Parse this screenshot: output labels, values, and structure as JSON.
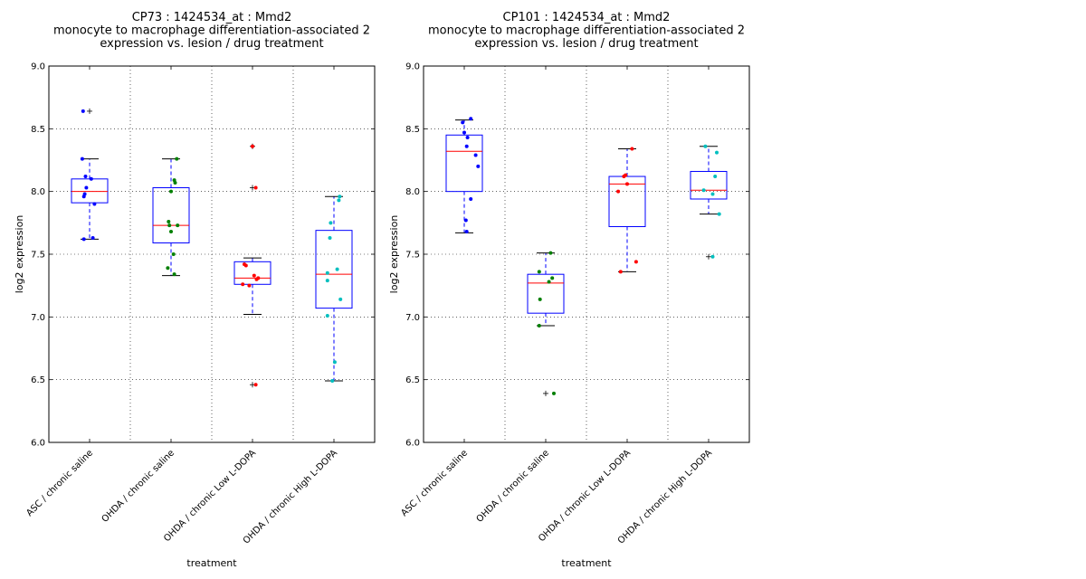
{
  "chart_data": [
    {
      "type": "box",
      "title": [
        "CP73 : 1424534_at : Mmd2",
        "monocyte to macrophage differentiation-associated 2",
        "expression vs. lesion / drug treatment"
      ],
      "xlabel": "treatment",
      "ylabel": "log2 expression",
      "ylim": [
        6.0,
        9.0
      ],
      "yticks": [
        "6.0",
        "6.5",
        "7.0",
        "7.5",
        "8.0",
        "8.5",
        "9.0"
      ],
      "grid": true,
      "categories": [
        "ASC / chronic saline",
        "OHDA / chronic saline",
        "OHDA / chronic Low L-DOPA",
        "OHDA / chronic High L-DOPA"
      ],
      "boxes": [
        {
          "q1": 7.91,
          "median": 8.0,
          "q3": 8.1,
          "whisker_low": 7.62,
          "whisker_high": 8.26,
          "outliers": [
            8.64
          ]
        },
        {
          "q1": 7.59,
          "median": 7.73,
          "q3": 8.03,
          "whisker_low": 7.33,
          "whisker_high": 8.26,
          "outliers": []
        },
        {
          "q1": 7.26,
          "median": 7.31,
          "q3": 7.44,
          "whisker_low": 7.02,
          "whisker_high": 7.47,
          "outliers": [
            8.36,
            8.03,
            6.46
          ]
        },
        {
          "q1": 7.07,
          "median": 7.34,
          "q3": 7.69,
          "whisker_low": 6.49,
          "whisker_high": 7.96,
          "outliers": []
        }
      ],
      "points": [
        {
          "color": "#0000ff",
          "items": [
            [
              -0.08,
              8.64
            ],
            [
              -0.09,
              8.26
            ],
            [
              -0.05,
              8.12
            ],
            [
              -0.04,
              8.03
            ],
            [
              -0.06,
              7.98
            ],
            [
              -0.07,
              7.96
            ],
            [
              0.06,
              7.9
            ],
            [
              0.02,
              8.1
            ],
            [
              0.04,
              7.63
            ],
            [
              -0.07,
              7.62
            ]
          ]
        },
        {
          "color": "#007f00",
          "items": [
            [
              0.07,
              8.26
            ],
            [
              0.04,
              8.09
            ],
            [
              0.05,
              8.07
            ],
            [
              0.0,
              8.0
            ],
            [
              -0.03,
              7.76
            ],
            [
              -0.02,
              7.73
            ],
            [
              0.08,
              7.73
            ],
            [
              0.0,
              7.68
            ],
            [
              0.03,
              7.5
            ],
            [
              -0.04,
              7.39
            ],
            [
              0.04,
              7.34
            ]
          ]
        },
        {
          "color": "#ff0000",
          "items": [
            [
              0.0,
              8.36
            ],
            [
              0.04,
              8.03
            ],
            [
              -0.1,
              7.42
            ],
            [
              -0.08,
              7.41
            ],
            [
              0.02,
              7.33
            ],
            [
              0.05,
              7.3
            ],
            [
              0.07,
              7.31
            ],
            [
              -0.12,
              7.26
            ],
            [
              -0.04,
              7.25
            ],
            [
              0.04,
              6.46
            ]
          ]
        },
        {
          "color": "#00bfbf",
          "items": [
            [
              0.07,
              7.96
            ],
            [
              0.06,
              7.93
            ],
            [
              -0.04,
              7.75
            ],
            [
              -0.05,
              7.63
            ],
            [
              0.04,
              7.38
            ],
            [
              -0.08,
              7.35
            ],
            [
              -0.08,
              7.29
            ],
            [
              0.08,
              7.14
            ],
            [
              -0.08,
              7.01
            ],
            [
              0.01,
              6.64
            ],
            [
              -0.02,
              6.49
            ]
          ]
        }
      ]
    },
    {
      "type": "box",
      "title": [
        "CP101 : 1424534_at : Mmd2",
        "monocyte to macrophage differentiation-associated 2",
        "expression vs. lesion / drug treatment"
      ],
      "xlabel": "treatment",
      "ylabel": "log2 expression",
      "ylim": [
        6.0,
        9.0
      ],
      "yticks": [
        "6.0",
        "6.5",
        "7.0",
        "7.5",
        "8.0",
        "8.5",
        "9.0"
      ],
      "grid": true,
      "categories": [
        "ASC / chronic saline",
        "OHDA / chronic saline",
        "OHDA / chronic Low L-DOPA",
        "OHDA / chronic High L-DOPA"
      ],
      "boxes": [
        {
          "q1": 8.0,
          "median": 8.32,
          "q3": 8.45,
          "whisker_low": 7.67,
          "whisker_high": 8.57,
          "outliers": []
        },
        {
          "q1": 7.03,
          "median": 7.27,
          "q3": 7.34,
          "whisker_low": 6.93,
          "whisker_high": 7.51,
          "outliers": [
            6.39
          ]
        },
        {
          "q1": 7.72,
          "median": 8.06,
          "q3": 8.12,
          "whisker_low": 7.36,
          "whisker_high": 8.34,
          "outliers": []
        },
        {
          "q1": 7.94,
          "median": 8.01,
          "q3": 8.16,
          "whisker_low": 7.82,
          "whisker_high": 8.36,
          "outliers": [
            7.48
          ]
        }
      ],
      "points": [
        {
          "color": "#0000ff",
          "items": [
            [
              0.08,
              8.58
            ],
            [
              -0.02,
              8.55
            ],
            [
              0.0,
              8.47
            ],
            [
              0.04,
              8.43
            ],
            [
              0.03,
              8.36
            ],
            [
              0.14,
              8.29
            ],
            [
              0.17,
              8.2
            ],
            [
              0.08,
              7.94
            ],
            [
              0.02,
              7.77
            ],
            [
              0.03,
              7.68
            ]
          ]
        },
        {
          "color": "#007f00",
          "items": [
            [
              0.06,
              7.51
            ],
            [
              -0.08,
              7.36
            ],
            [
              0.08,
              7.31
            ],
            [
              0.04,
              7.28
            ],
            [
              -0.07,
              7.14
            ],
            [
              -0.08,
              6.93
            ],
            [
              0.1,
              6.39
            ]
          ]
        },
        {
          "color": "#ff0000",
          "items": [
            [
              0.06,
              8.34
            ],
            [
              -0.02,
              8.13
            ],
            [
              -0.04,
              8.12
            ],
            [
              0.0,
              8.06
            ],
            [
              -0.11,
              8.0
            ],
            [
              0.11,
              7.44
            ],
            [
              -0.08,
              7.36
            ]
          ]
        },
        {
          "color": "#00bfbf",
          "items": [
            [
              -0.04,
              8.36
            ],
            [
              0.1,
              8.31
            ],
            [
              0.08,
              8.12
            ],
            [
              -0.06,
              8.01
            ],
            [
              0.05,
              7.98
            ],
            [
              0.13,
              7.82
            ],
            [
              0.05,
              7.48
            ]
          ]
        }
      ]
    }
  ]
}
